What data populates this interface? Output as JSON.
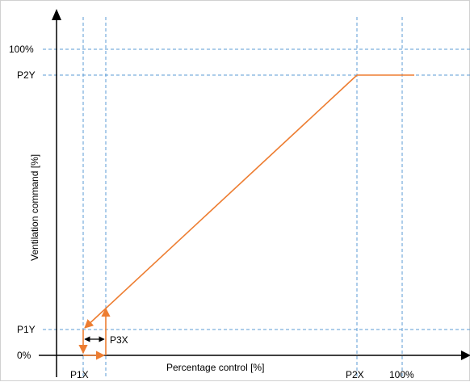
{
  "x_axis": {
    "title": "Percentage control [%]",
    "ticks": {
      "p1x": "P1X",
      "p2x": "P2X",
      "max": "100%"
    }
  },
  "y_axis": {
    "title": "Ventilation command [%]",
    "ticks": {
      "max": "100%",
      "p2y": "P2Y",
      "p1y": "P1Y",
      "zero": "0%"
    }
  },
  "annotations": {
    "p3x": "P3X"
  },
  "colors": {
    "curve": "#ED7D31",
    "guides": "#5B9BD5",
    "axes": "#000000",
    "hysteresis_arrow": "#000000"
  }
}
